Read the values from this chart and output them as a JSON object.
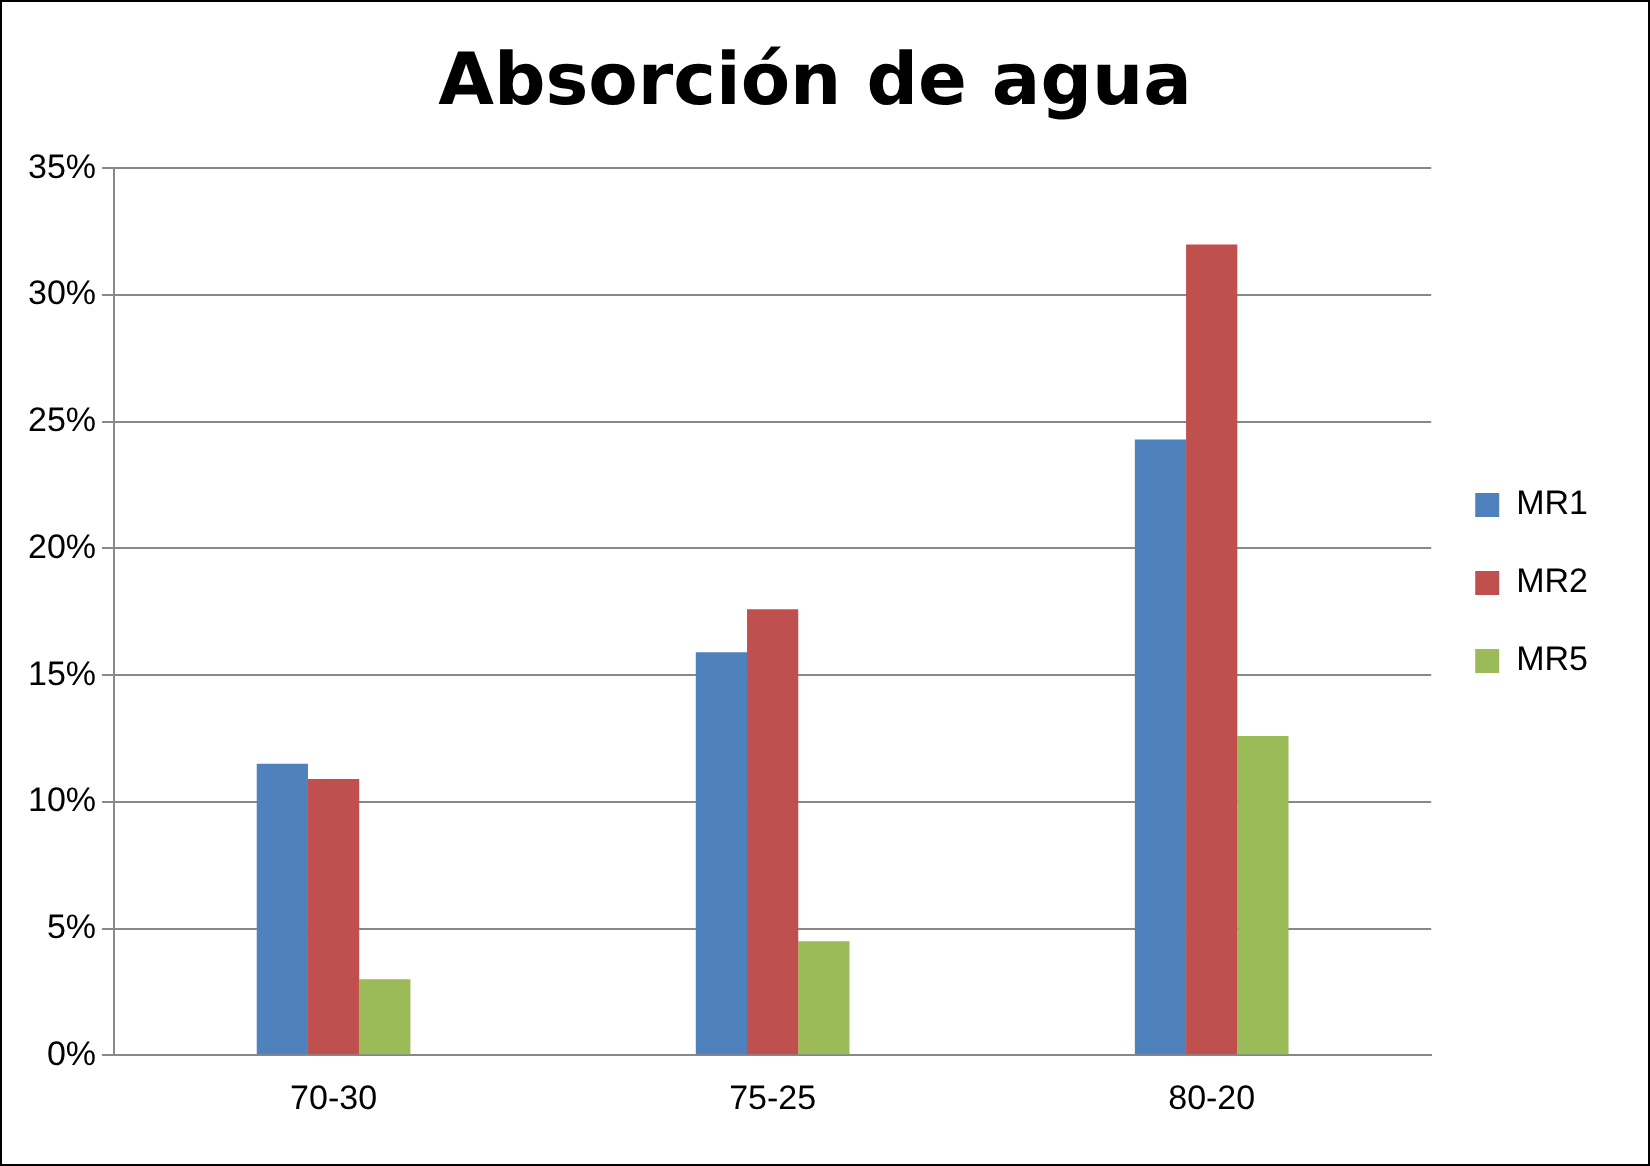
{
  "chart_data": {
    "type": "bar",
    "title": "Absorción de agua",
    "categories": [
      "70-30",
      "75-25",
      "80-20"
    ],
    "series": [
      {
        "name": "MR1",
        "color": "#4f81bd",
        "values": [
          11.5,
          15.9,
          24.3
        ]
      },
      {
        "name": "MR2",
        "color": "#c0504d",
        "values": [
          10.9,
          17.6,
          32
        ]
      },
      {
        "name": "MR5",
        "color": "#9bbb59",
        "values": [
          3,
          4.5,
          12.6
        ]
      }
    ],
    "ylim": [
      0,
      35
    ],
    "yticks": [
      {
        "value": 0,
        "label": "0%"
      },
      {
        "value": 5,
        "label": "5%"
      },
      {
        "value": 10,
        "label": "10%"
      },
      {
        "value": 15,
        "label": "15%"
      },
      {
        "value": 20,
        "label": "20%"
      },
      {
        "value": 25,
        "label": "25%"
      },
      {
        "value": 30,
        "label": "30%"
      },
      {
        "value": 35,
        "label": "35%"
      }
    ],
    "grid": "y",
    "legend": "right"
  }
}
